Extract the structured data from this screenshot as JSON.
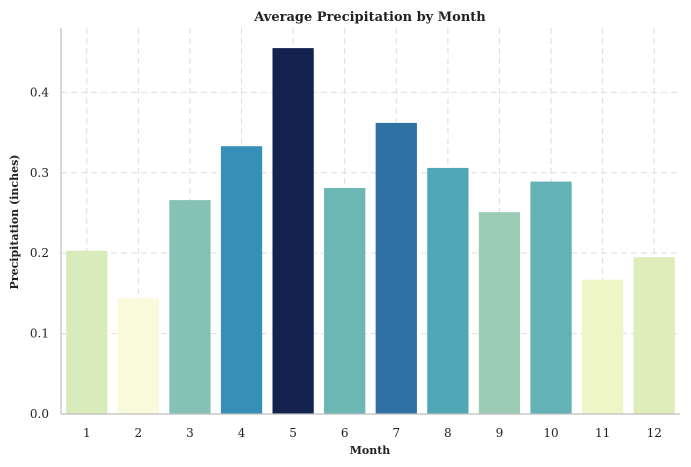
{
  "chart_data": {
    "type": "bar",
    "title": "Average Precipitation by Month",
    "xlabel": "Month",
    "ylabel": "Precipitation (inches)",
    "categories": [
      "1",
      "2",
      "3",
      "4",
      "5",
      "6",
      "7",
      "8",
      "9",
      "10",
      "11",
      "12"
    ],
    "values": [
      0.203,
      0.144,
      0.266,
      0.333,
      0.455,
      0.281,
      0.362,
      0.306,
      0.251,
      0.289,
      0.167,
      0.195
    ],
    "colors": [
      "#d8ecbb",
      "#f8fadb",
      "#85c1b5",
      "#368fb7",
      "#14224f",
      "#6cb6b3",
      "#3071a3",
      "#50a7b5",
      "#9ccbb5",
      "#63b2b6",
      "#eef6c8",
      "#dfedbb"
    ],
    "ylim": [
      0,
      0.48
    ],
    "yticks": [
      "0.0",
      "0.1",
      "0.2",
      "0.3",
      "0.4"
    ],
    "ytick_values": [
      0,
      0.1,
      0.2,
      0.3,
      0.4
    ],
    "grid": true
  }
}
